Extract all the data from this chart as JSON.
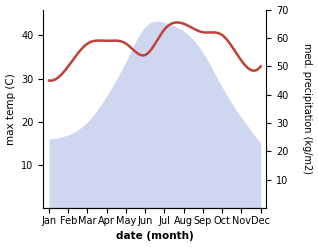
{
  "months": [
    "Jan",
    "Feb",
    "Mar",
    "Apr",
    "May",
    "Jun",
    "Jul",
    "Aug",
    "Sep",
    "Oct",
    "Nov",
    "Dec"
  ],
  "temp": [
    16,
    17,
    20,
    26,
    34,
    42,
    43,
    41,
    36,
    28,
    21,
    15
  ],
  "precip": [
    45,
    50,
    58,
    59,
    58,
    54,
    63,
    65,
    62,
    61,
    52,
    50
  ],
  "temp_fill_color": "#bbc5ea",
  "precip_color": "#c0403a",
  "ylabel_left": "max temp (C)",
  "ylabel_right": "med. precipitation (kg/m2)",
  "xlabel": "date (month)",
  "ylim_left": [
    0,
    46
  ],
  "ylim_right": [
    0,
    70
  ],
  "yticks_left": [
    10,
    20,
    30,
    40
  ],
  "yticks_right": [
    10,
    20,
    30,
    40,
    50,
    60,
    70
  ],
  "background_color": "#ffffff"
}
